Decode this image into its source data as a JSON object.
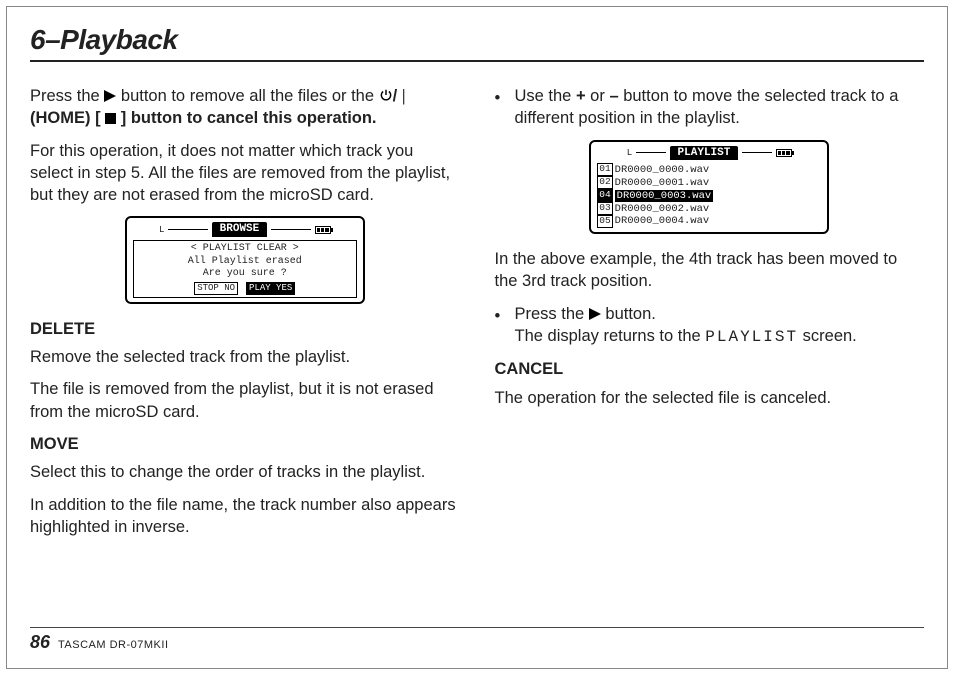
{
  "header": {
    "title": "6–Playback"
  },
  "col1": {
    "p1a": "Press the ",
    "p1b": " button to remove all the files or the ",
    "p1c": "(HOME) [",
    "p1d": "] button to cancel this operation.",
    "p2": "For this operation, it does not matter which track you select in step 5. All the files are removed from the playlist, but they are not erased from the microSD card.",
    "lcd1": {
      "title": "BROWSE",
      "lmark": "L",
      "line1": "< PLAYLIST CLEAR >",
      "line2": "All Playlist erased",
      "line3": "Are you sure ?",
      "btn1": "STOP NO",
      "btn2": "PLAY YES"
    },
    "deleteHeading": "DELETE",
    "deleteP1": "Remove the selected track from the playlist.",
    "deleteP2": "The file is removed from the playlist, but it is not erased from the microSD card.",
    "moveHeading": "MOVE",
    "moveP1": "Select this to change the order of tracks in the playlist.",
    "moveP2": "In addition to the file name, the track number also appears highlighted in inverse."
  },
  "col2": {
    "bullet1a": "Use the ",
    "plus": "+",
    "or": " or ",
    "minus": "–",
    "bullet1b": " button to move the selected track to a different position in the playlist.",
    "lcd2": {
      "title": "PLAYLIST",
      "rows": [
        {
          "num": "01",
          "name": "DR0000_0000.wav",
          "sel": false
        },
        {
          "num": "02",
          "name": "DR0000_0001.wav",
          "sel": false
        },
        {
          "num": "04",
          "name": "DR0000_0003.wav",
          "sel": true
        },
        {
          "num": "03",
          "name": "DR0000_0002.wav",
          "sel": false
        },
        {
          "num": "05",
          "name": "DR0000_0004.wav",
          "sel": false
        }
      ]
    },
    "example": "In the above example, the 4th track has been moved to the 3rd track position.",
    "bullet2a": "Press the ",
    "bullet2b": " button.",
    "bullet2c": "The display returns to the ",
    "lcdword": "PLAYLIST",
    "bullet2d": " screen.",
    "cancelHeading": "CANCEL",
    "cancelP": "The operation for the selected file is canceled."
  },
  "footer": {
    "pageNumber": "86",
    "model": "TASCAM DR-07MKII"
  },
  "icons": {
    "powerSlash": "⏻/ |"
  }
}
